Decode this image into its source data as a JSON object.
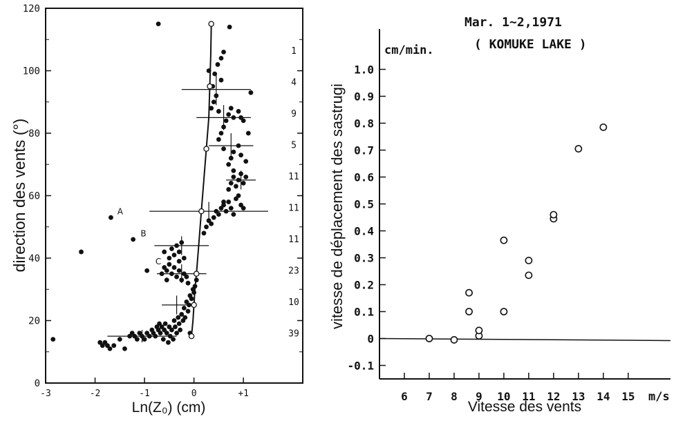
{
  "chart_data": [
    {
      "type": "scatter",
      "xlabel": "Ln(Z₀) (cm)",
      "ylabel": "direction des vents (°)",
      "xlim": [
        -3,
        2.2
      ],
      "ylim": [
        0,
        120
      ],
      "x_ticks": [
        "-3",
        "-2",
        "-1",
        "0",
        "+1"
      ],
      "y_ticks": [
        "0",
        "20",
        "40",
        "60",
        "80",
        "100",
        "120"
      ],
      "counts_column": [
        "1",
        "4",
        "9",
        "5",
        "11",
        "11",
        "11",
        "23",
        "10",
        "39"
      ],
      "annotations": [
        {
          "text": "A",
          "x": -1.55,
          "y": 54
        },
        {
          "text": "B",
          "x": -1.08,
          "y": 47
        },
        {
          "text": "C",
          "x": -0.78,
          "y": 38
        }
      ],
      "series": [
        {
          "points": [
            [
              -2.85,
              14
            ],
            [
              -2.28,
              42
            ],
            [
              -1.68,
              53
            ],
            [
              -1.23,
              46
            ],
            [
              -0.95,
              36
            ],
            [
              -0.72,
              115
            ],
            [
              -1.9,
              13
            ],
            [
              -1.85,
              12
            ],
            [
              -1.8,
              13
            ],
            [
              -1.75,
              12
            ],
            [
              -1.7,
              11
            ],
            [
              -1.62,
              12
            ],
            [
              -1.5,
              14
            ],
            [
              -1.4,
              11
            ],
            [
              -1.3,
              15
            ],
            [
              -1.25,
              16
            ],
            [
              -1.2,
              15
            ],
            [
              -1.15,
              14
            ],
            [
              -1.1,
              16
            ],
            [
              -1.05,
              15
            ],
            [
              -1.0,
              14
            ],
            [
              -0.95,
              16
            ],
            [
              -0.9,
              15
            ],
            [
              -0.85,
              17
            ],
            [
              -0.82,
              16
            ],
            [
              -0.78,
              15
            ],
            [
              -0.75,
              18
            ],
            [
              -0.72,
              17
            ],
            [
              -0.7,
              19
            ],
            [
              -0.68,
              16
            ],
            [
              -0.65,
              18
            ],
            [
              -0.62,
              14
            ],
            [
              -0.6,
              17
            ],
            [
              -0.58,
              19
            ],
            [
              -0.55,
              16
            ],
            [
              -0.52,
              13
            ],
            [
              -0.5,
              18
            ],
            [
              -0.48,
              15
            ],
            [
              -0.45,
              17
            ],
            [
              -0.42,
              14
            ],
            [
              -0.4,
              20
            ],
            [
              -0.38,
              18
            ],
            [
              -0.35,
              16
            ],
            [
              -0.32,
              21
            ],
            [
              -0.3,
              19
            ],
            [
              -0.28,
              17
            ],
            [
              -0.25,
              22
            ],
            [
              -0.22,
              20
            ],
            [
              -0.2,
              24
            ],
            [
              -0.18,
              21
            ],
            [
              -0.15,
              26
            ],
            [
              -0.12,
              23
            ],
            [
              -0.1,
              25
            ],
            [
              -0.08,
              28
            ],
            [
              -0.05,
              27
            ],
            [
              -0.02,
              30
            ],
            [
              0.0,
              29
            ],
            [
              0.02,
              31
            ],
            [
              0.05,
              33
            ],
            [
              -0.08,
              16
            ],
            [
              -0.65,
              35
            ],
            [
              -0.6,
              37
            ],
            [
              -0.55,
              36
            ],
            [
              -0.5,
              38
            ],
            [
              -0.45,
              35
            ],
            [
              -0.4,
              37
            ],
            [
              -0.35,
              34
            ],
            [
              -0.3,
              36
            ],
            [
              -0.25,
              33
            ],
            [
              -0.2,
              35
            ],
            [
              -0.15,
              34
            ],
            [
              -0.12,
              32
            ],
            [
              -0.5,
              40
            ],
            [
              -0.4,
              41
            ],
            [
              -0.3,
              42
            ],
            [
              -0.2,
              40
            ],
            [
              -0.35,
              44
            ],
            [
              -0.25,
              45
            ],
            [
              -0.45,
              43
            ],
            [
              -0.3,
              39
            ],
            [
              -0.6,
              42
            ],
            [
              -0.55,
              33
            ],
            [
              0.2,
              48
            ],
            [
              0.25,
              50
            ],
            [
              0.3,
              52
            ],
            [
              0.35,
              51
            ],
            [
              0.4,
              53
            ],
            [
              0.45,
              55
            ],
            [
              0.5,
              54
            ],
            [
              0.55,
              56
            ],
            [
              0.6,
              57
            ],
            [
              0.65,
              55
            ],
            [
              0.7,
              58
            ],
            [
              0.75,
              56
            ],
            [
              0.8,
              54
            ],
            [
              0.85,
              59
            ],
            [
              0.9,
              60
            ],
            [
              0.95,
              57
            ],
            [
              1.0,
              56
            ],
            [
              0.6,
              58
            ],
            [
              0.7,
              62
            ],
            [
              0.75,
              64
            ],
            [
              0.8,
              66
            ],
            [
              0.85,
              63
            ],
            [
              0.9,
              65
            ],
            [
              0.95,
              67
            ],
            [
              1.0,
              64
            ],
            [
              1.05,
              66
            ],
            [
              0.8,
              68
            ],
            [
              0.7,
              70
            ],
            [
              0.75,
              72
            ],
            [
              0.8,
              74
            ],
            [
              0.9,
              76
            ],
            [
              0.95,
              73
            ],
            [
              1.05,
              71
            ],
            [
              0.6,
              75
            ],
            [
              0.5,
              78
            ],
            [
              0.55,
              80
            ],
            [
              0.6,
              82
            ],
            [
              0.65,
              84
            ],
            [
              0.7,
              86
            ],
            [
              0.75,
              88
            ],
            [
              0.8,
              85
            ],
            [
              0.9,
              87
            ],
            [
              1.0,
              84
            ],
            [
              1.1,
              80
            ],
            [
              0.35,
              88
            ],
            [
              0.4,
              90
            ],
            [
              0.45,
              92
            ],
            [
              0.5,
              87
            ],
            [
              0.38,
              95
            ],
            [
              0.42,
              99
            ],
            [
              0.55,
              97
            ],
            [
              0.3,
              100
            ],
            [
              0.55,
              104
            ],
            [
              0.48,
              102
            ],
            [
              0.6,
              106
            ],
            [
              0.72,
              114
            ],
            [
              1.15,
              93
            ],
            [
              0.95,
              85
            ]
          ]
        },
        {
          "name": "curve",
          "points": [
            [
              -0.05,
              15
            ],
            [
              -0.02,
              20
            ],
            [
              0.0,
              25
            ],
            [
              0.02,
              30
            ],
            [
              0.05,
              35
            ],
            [
              0.1,
              45
            ],
            [
              0.15,
              55
            ],
            [
              0.2,
              65
            ],
            [
              0.25,
              75
            ],
            [
              0.3,
              85
            ],
            [
              0.32,
              95
            ],
            [
              0.34,
              105
            ],
            [
              0.35,
              115
            ]
          ]
        }
      ],
      "error_crosses": [
        {
          "x": 0.45,
          "y": 94,
          "xerr": 0.7,
          "yerr": 5
        },
        {
          "x": 0.6,
          "y": 85,
          "xerr": 0.55,
          "yerr": 4
        },
        {
          "x": 0.75,
          "y": 76,
          "xerr": 0.45,
          "yerr": 4
        },
        {
          "x": 0.95,
          "y": 65,
          "xerr": 0.3,
          "yerr": 3
        },
        {
          "x": 0.3,
          "y": 55,
          "xerr": 1.2,
          "yerr": 3
        },
        {
          "x": -0.25,
          "y": 44,
          "xerr": 0.55,
          "yerr": 3
        },
        {
          "x": -0.25,
          "y": 35,
          "xerr": 0.5,
          "yerr": 3
        },
        {
          "x": -0.35,
          "y": 25,
          "xerr": 0.3,
          "yerr": 3
        },
        {
          "x": -1.05,
          "y": 15,
          "xerr": 0.7,
          "yerr": 2
        }
      ]
    },
    {
      "type": "scatter",
      "title": "Mar. 1∼2,1971",
      "subtitle": "( KOMUKE LAKE )",
      "xlabel": "Vitesse des vents",
      "ylabel": "vitesse de déplacement des sastrugi",
      "y_unit": "cm/min.",
      "x_unit": "m/s",
      "xlim": [
        5,
        16.7
      ],
      "ylim": [
        -0.15,
        1.15
      ],
      "x_ticks": [
        "6",
        "7",
        "8",
        "9",
        "10",
        "11",
        "12",
        "13",
        "14",
        "15"
      ],
      "y_ticks": [
        "-0.1",
        "0",
        "0.1",
        "0.2",
        "0.3",
        "0.4",
        "0.5",
        "0.6",
        "0.7",
        "0.8",
        "0.9",
        "1.0"
      ],
      "values": [
        [
          7.0,
          0.0
        ],
        [
          8.0,
          -0.005
        ],
        [
          8.6,
          0.1
        ],
        [
          8.6,
          0.17
        ],
        [
          9.0,
          0.01
        ],
        [
          9.0,
          0.03
        ],
        [
          10.0,
          0.1
        ],
        [
          10.0,
          0.365
        ],
        [
          11.0,
          0.235
        ],
        [
          11.0,
          0.29
        ],
        [
          12.0,
          0.445
        ],
        [
          12.0,
          0.46
        ],
        [
          13.0,
          0.705
        ],
        [
          14.0,
          0.785
        ]
      ],
      "baseline_y": 0
    }
  ]
}
